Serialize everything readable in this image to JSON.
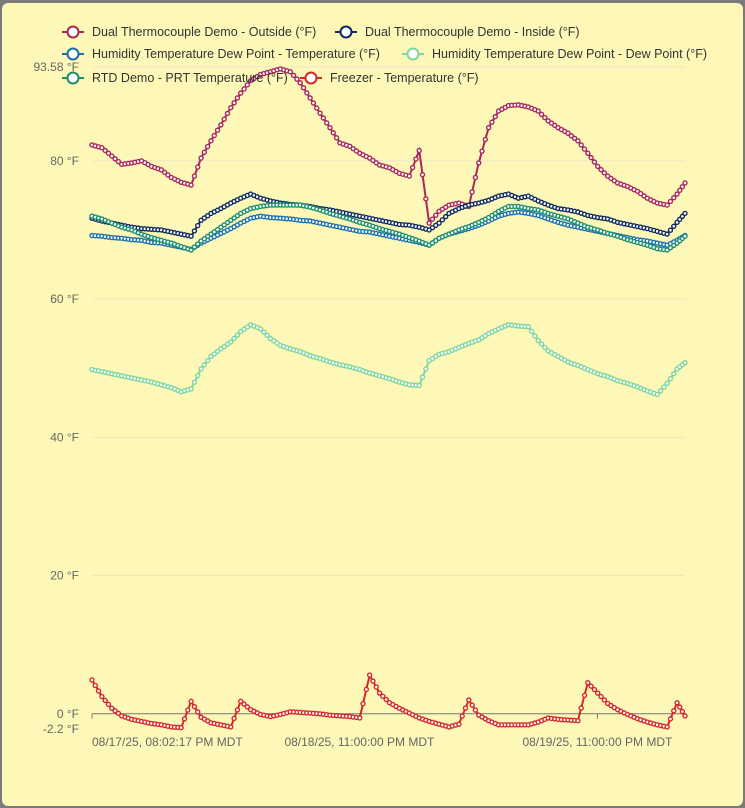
{
  "chart_data": {
    "type": "line",
    "legend_position": "top",
    "grid": true,
    "ylim": [
      -2.2,
      93.58
    ],
    "xlim": [
      "2025-08-17T20:02:17",
      "2025-08-20T07:50:00"
    ],
    "y_ticks": [
      {
        "value": 93.58,
        "label": "93.58 °F"
      },
      {
        "value": 80,
        "label": "80 °F"
      },
      {
        "value": 60,
        "label": "60 °F"
      },
      {
        "value": 40,
        "label": "40 °F"
      },
      {
        "value": 20,
        "label": "20 °F"
      },
      {
        "value": 0,
        "label": "0 °F"
      },
      {
        "value": -2.2,
        "label": "-2.2 °F"
      }
    ],
    "x_ticks": [
      {
        "value": "2025-08-17T20:02:17",
        "label": "08/17/25, 08:02:17 PM MDT"
      },
      {
        "value": "2025-08-18T23:00:00",
        "label": "08/18/25, 11:00:00 PM MDT"
      },
      {
        "value": "2025-08-19T23:00:00",
        "label": "08/19/25, 11:00:00 PM MDT"
      }
    ],
    "x": [
      "2025-08-17T20:02",
      "2025-08-17T21:02",
      "2025-08-17T22:02",
      "2025-08-17T23:02",
      "2025-08-18T00:02",
      "2025-08-18T01:02",
      "2025-08-18T02:02",
      "2025-08-18T03:02",
      "2025-08-18T04:02",
      "2025-08-18T05:02",
      "2025-08-18T06:02",
      "2025-08-18T07:02",
      "2025-08-18T08:02",
      "2025-08-18T09:02",
      "2025-08-18T10:02",
      "2025-08-18T11:02",
      "2025-08-18T12:02",
      "2025-08-18T13:02",
      "2025-08-18T14:02",
      "2025-08-18T15:02",
      "2025-08-18T16:02",
      "2025-08-18T17:02",
      "2025-08-18T18:02",
      "2025-08-18T19:02",
      "2025-08-18T20:02",
      "2025-08-18T21:02",
      "2025-08-18T22:02",
      "2025-08-18T23:02",
      "2025-08-19T00:02",
      "2025-08-19T01:02",
      "2025-08-19T02:02",
      "2025-08-19T03:02",
      "2025-08-19T04:02",
      "2025-08-19T05:02",
      "2025-08-19T06:02",
      "2025-08-19T07:02",
      "2025-08-19T08:02",
      "2025-08-19T09:02",
      "2025-08-19T10:02",
      "2025-08-19T11:02",
      "2025-08-19T12:02",
      "2025-08-19T13:02",
      "2025-08-19T14:02",
      "2025-08-19T15:02",
      "2025-08-19T16:02",
      "2025-08-19T17:02",
      "2025-08-19T18:02",
      "2025-08-19T19:02",
      "2025-08-19T20:02",
      "2025-08-19T21:02",
      "2025-08-19T22:02",
      "2025-08-19T23:02",
      "2025-08-20T00:02",
      "2025-08-20T01:02",
      "2025-08-20T02:02",
      "2025-08-20T03:02",
      "2025-08-20T04:02",
      "2025-08-20T05:02",
      "2025-08-20T06:02",
      "2025-08-20T07:02",
      "2025-08-20T07:50"
    ],
    "series": [
      {
        "name": "Dual Thermocouple Demo - Outside (°F)",
        "color": "#a8285a",
        "values": [
          82.3,
          81.9,
          80.7,
          79.5,
          79.7,
          80.0,
          79.2,
          78.7,
          77.6,
          76.9,
          76.5,
          80.4,
          82.9,
          85.2,
          87.7,
          89.8,
          91.6,
          92.5,
          92.9,
          93.3,
          92.9,
          91.3,
          89.1,
          86.9,
          84.8,
          82.6,
          82.1,
          81.1,
          80.4,
          79.4,
          79.0,
          78.2,
          77.8,
          81.5,
          71.0,
          72.7,
          73.6,
          73.9,
          73.4,
          79.7,
          84.8,
          87.2,
          88.0,
          88.1,
          87.8,
          87.2,
          85.8,
          84.8,
          84.0,
          82.9,
          81.1,
          79.2,
          77.8,
          76.8,
          76.3,
          75.6,
          74.6,
          73.9,
          73.6,
          75.2,
          76.8
        ]
      },
      {
        "name": "Dual Thermocouple Demo - Inside (°F)",
        "color": "#0f2a60",
        "values": [
          71.7,
          71.3,
          71.0,
          70.7,
          70.4,
          70.2,
          70.1,
          70.0,
          69.7,
          69.4,
          69.1,
          71.4,
          72.4,
          73.1,
          73.9,
          74.6,
          75.2,
          74.6,
          74.2,
          73.9,
          73.7,
          73.6,
          73.4,
          73.1,
          72.9,
          72.6,
          72.3,
          72.0,
          71.7,
          71.4,
          71.1,
          70.8,
          70.7,
          70.4,
          70.0,
          71.0,
          72.4,
          73.1,
          73.6,
          73.9,
          74.3,
          74.9,
          75.2,
          74.6,
          74.9,
          74.2,
          73.6,
          73.1,
          72.9,
          72.6,
          72.1,
          71.8,
          71.6,
          71.1,
          70.8,
          70.5,
          70.2,
          69.8,
          69.4,
          71.1,
          72.4
        ]
      },
      {
        "name": "Humidity Temperature Dew Point - Temperature (°F)",
        "color": "#1a6fb0",
        "values": [
          69.2,
          69.1,
          68.9,
          68.8,
          68.6,
          68.5,
          68.2,
          68.1,
          67.8,
          67.5,
          67.2,
          68.1,
          68.8,
          69.5,
          70.2,
          71.0,
          71.7,
          72.0,
          71.8,
          71.7,
          71.6,
          71.4,
          71.3,
          71.0,
          70.7,
          70.4,
          70.1,
          69.8,
          69.7,
          69.4,
          69.1,
          68.8,
          68.5,
          68.2,
          67.8,
          68.8,
          69.4,
          69.8,
          70.2,
          70.7,
          71.3,
          72.0,
          72.4,
          72.6,
          72.4,
          72.1,
          71.6,
          71.1,
          70.7,
          70.4,
          70.1,
          69.8,
          69.5,
          69.2,
          68.9,
          68.6,
          68.4,
          68.1,
          67.8,
          68.5,
          69.2
        ]
      },
      {
        "name": "Humidity Temperature Dew Point - Dew Point (°F)",
        "color": "#7fd69e",
        "values": [
          49.8,
          49.5,
          49.2,
          48.9,
          48.6,
          48.3,
          48.0,
          47.6,
          47.2,
          46.6,
          47.0,
          49.9,
          51.7,
          52.8,
          53.8,
          55.3,
          56.3,
          55.7,
          54.3,
          53.3,
          52.8,
          52.4,
          51.8,
          51.4,
          50.9,
          50.5,
          50.2,
          49.8,
          49.3,
          48.9,
          48.5,
          48.0,
          47.6,
          47.5,
          51.1,
          52.0,
          52.4,
          53.0,
          53.6,
          54.1,
          55.0,
          55.7,
          56.3,
          56.1,
          56.0,
          54.0,
          52.5,
          51.7,
          50.9,
          50.4,
          49.8,
          49.2,
          48.8,
          48.2,
          47.8,
          47.3,
          46.7,
          46.2,
          47.8,
          49.9,
          50.8
        ]
      },
      {
        "name": "RTD Demo - PRT Temperature (°F)",
        "color": "#1b8f6c",
        "values": [
          72.0,
          71.6,
          71.0,
          70.4,
          70.0,
          69.4,
          68.9,
          68.5,
          68.1,
          67.6,
          67.1,
          68.4,
          69.4,
          70.4,
          71.4,
          72.4,
          73.1,
          73.4,
          73.6,
          73.6,
          73.6,
          73.6,
          73.3,
          72.9,
          72.4,
          72.0,
          71.6,
          71.1,
          70.7,
          70.2,
          69.8,
          69.4,
          68.9,
          68.4,
          67.8,
          68.8,
          69.4,
          70.0,
          70.5,
          71.1,
          71.8,
          72.7,
          73.4,
          73.4,
          73.1,
          72.9,
          72.4,
          72.0,
          71.6,
          71.0,
          70.4,
          70.0,
          69.5,
          69.1,
          68.6,
          68.2,
          67.8,
          67.3,
          67.1,
          68.1,
          69.1
        ]
      },
      {
        "name": "Freezer - Temperature (°F)",
        "color": "#d62728",
        "values": [
          4.9,
          2.5,
          0.8,
          -0.3,
          -0.8,
          -1.1,
          -1.4,
          -1.6,
          -1.9,
          -2.0,
          1.8,
          -0.5,
          -1.3,
          -1.6,
          -1.9,
          1.8,
          0.6,
          -0.1,
          -0.4,
          -0.1,
          0.3,
          0.2,
          0.1,
          0.0,
          -0.2,
          -0.3,
          -0.4,
          -0.6,
          5.6,
          3.0,
          1.6,
          0.8,
          0.1,
          -0.6,
          -1.1,
          -1.5,
          -1.9,
          -1.5,
          2.0,
          -0.2,
          -1.0,
          -1.6,
          -1.6,
          -1.6,
          -1.6,
          -1.2,
          -0.6,
          -0.8,
          -0.9,
          -1.0,
          4.5,
          3.0,
          1.5,
          0.6,
          -0.1,
          -0.7,
          -1.2,
          -1.6,
          -1.9,
          1.6,
          -0.3
        ]
      }
    ]
  }
}
